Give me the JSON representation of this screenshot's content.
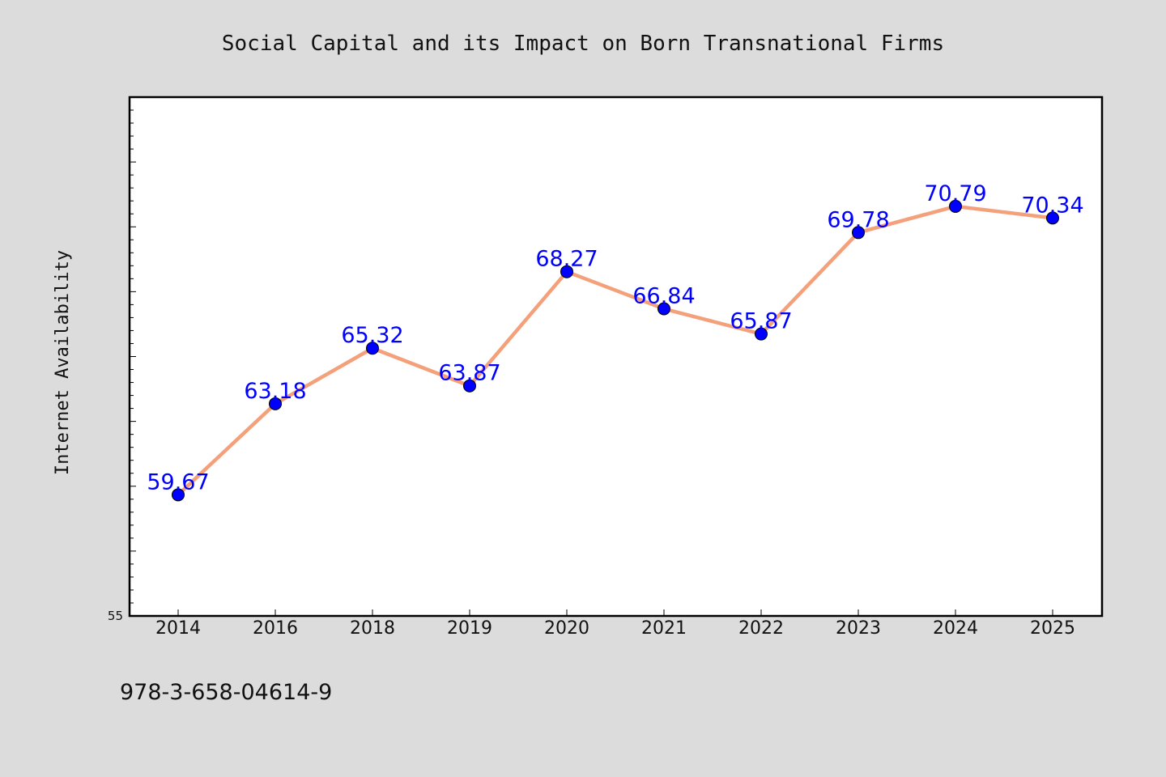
{
  "chart_data": {
    "type": "line",
    "title": "Social Capital and its Impact on Born Transnational Firms",
    "xlabel": "",
    "ylabel": "Internet Availability",
    "categories": [
      "2014",
      "2016",
      "2018",
      "2019",
      "2020",
      "2021",
      "2022",
      "2023",
      "2024",
      "2025"
    ],
    "series": [
      {
        "values": [
          59.67,
          63.18,
          65.32,
          63.87,
          68.27,
          66.84,
          65.87,
          69.78,
          70.79,
          70.34
        ],
        "data_labels": [
          "59.67",
          "63.18",
          "65.32",
          "63.87",
          "68.27",
          "66.84",
          "65.87",
          "69.78",
          "70.79",
          "70.34"
        ]
      }
    ],
    "ylim": [
      55,
      75
    ],
    "y_tick_labels": [
      "55"
    ],
    "grid": false,
    "legend": "none",
    "colors": {
      "line": "#f4a07a",
      "marker": "#0000ff",
      "marker_edge": "#000000",
      "data_label": "#0000ff",
      "plot_background": "#ffffff",
      "figure_background": "#dcdcdc"
    }
  },
  "footer_text": "978-3-658-04614-9"
}
